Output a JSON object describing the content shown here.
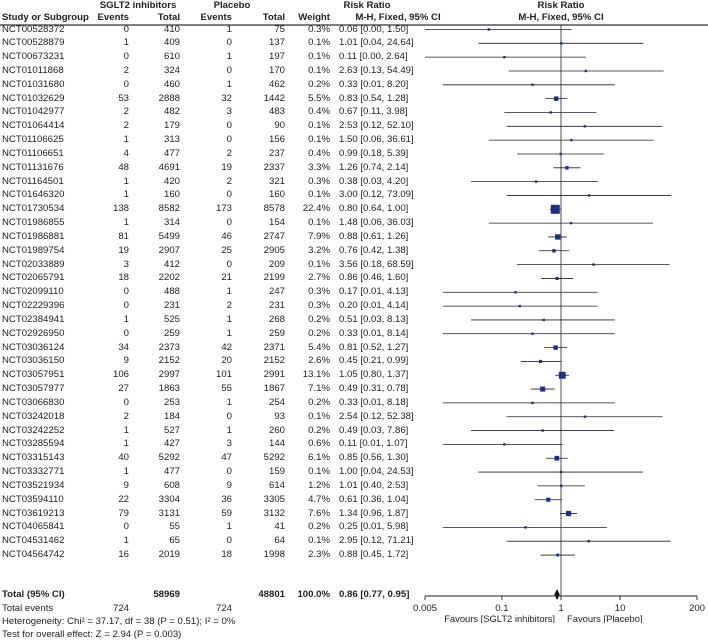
{
  "headers": {
    "group1": "SGLT2 inhibitors",
    "group2": "Placebo",
    "rr_left": "Risk Ratio",
    "rr_right": "Risk Ratio",
    "study": "Study or Subgroup",
    "events1": "Events",
    "total1": "Total",
    "events2": "Events",
    "total2": "Total",
    "weight": "Weight",
    "method_left": "M-H, Fixed, 95% CI",
    "method_right": "M-H, Fixed, 95% CI"
  },
  "rows": [
    {
      "study": "NCT00528372",
      "e1": "0",
      "n1": "410",
      "e2": "1",
      "n2": "75",
      "weight": "0.3%",
      "ci": "0.06 [0.00, 1.50]"
    },
    {
      "study": "NCT00528879",
      "e1": "1",
      "n1": "409",
      "e2": "0",
      "n2": "137",
      "weight": "0.1%",
      "ci": "1.01 [0.04, 24.64]"
    },
    {
      "study": "NCT00673231",
      "e1": "0",
      "n1": "610",
      "e2": "1",
      "n2": "197",
      "weight": "0.1%",
      "ci": "0.11 [0.00, 2.64]"
    },
    {
      "study": "NCT01011868",
      "e1": "2",
      "n1": "324",
      "e2": "0",
      "n2": "170",
      "weight": "0.1%",
      "ci": "2.63 [0.13, 54.49]"
    },
    {
      "study": "NCT01031680",
      "e1": "0",
      "n1": "460",
      "e2": "1",
      "n2": "462",
      "weight": "0.2%",
      "ci": "0.33 [0.01, 8.20]"
    },
    {
      "study": "NCT01032629",
      "e1": "53",
      "n1": "2888",
      "e2": "32",
      "n2": "1442",
      "weight": "5.5%",
      "ci": "0.83 [0.54, 1.28]"
    },
    {
      "study": "NCT01042977",
      "e1": "2",
      "n1": "482",
      "e2": "3",
      "n2": "483",
      "weight": "0.4%",
      "ci": "0.67 [0.11, 3.98]"
    },
    {
      "study": "NCT01064414",
      "e1": "2",
      "n1": "179",
      "e2": "0",
      "n2": "90",
      "weight": "0.1%",
      "ci": "2.53 [0.12, 52.10]"
    },
    {
      "study": "NCT01106625",
      "e1": "1",
      "n1": "313",
      "e2": "0",
      "n2": "156",
      "weight": "0.1%",
      "ci": "1.50 [0.06, 36.61]"
    },
    {
      "study": "NCT01106651",
      "e1": "4",
      "n1": "477",
      "e2": "2",
      "n2": "237",
      "weight": "0.4%",
      "ci": "0.99 [0.18, 5.39]"
    },
    {
      "study": "NCT01131676",
      "e1": "48",
      "n1": "4691",
      "e2": "19",
      "n2": "2337",
      "weight": "3.3%",
      "ci": "1.26 [0.74, 2.14]"
    },
    {
      "study": "NCT01164501",
      "e1": "1",
      "n1": "420",
      "e2": "2",
      "n2": "321",
      "weight": "0.3%",
      "ci": "0.38 [0.03, 4.20]"
    },
    {
      "study": "NCT01646320",
      "e1": "1",
      "n1": "160",
      "e2": "0",
      "n2": "160",
      "weight": "0.1%",
      "ci": "3.00 [0.12, 73.09]"
    },
    {
      "study": "NCT01730534",
      "e1": "138",
      "n1": "8582",
      "e2": "173",
      "n2": "8578",
      "weight": "22.4%",
      "ci": "0.80 [0.64, 1.00]"
    },
    {
      "study": "NCT01986855",
      "e1": "1",
      "n1": "314",
      "e2": "0",
      "n2": "154",
      "weight": "0.1%",
      "ci": "1.48 [0.06, 36.03]"
    },
    {
      "study": "NCT01986881",
      "e1": "81",
      "n1": "5499",
      "e2": "46",
      "n2": "2747",
      "weight": "7.9%",
      "ci": "0.88 [0.61, 1.26]"
    },
    {
      "study": "NCT01989754",
      "e1": "19",
      "n1": "2907",
      "e2": "25",
      "n2": "2905",
      "weight": "3.2%",
      "ci": "0.76 [0.42, 1.38]"
    },
    {
      "study": "NCT02033889",
      "e1": "3",
      "n1": "412",
      "e2": "0",
      "n2": "209",
      "weight": "0.1%",
      "ci": "3.56 [0.18, 68.59]"
    },
    {
      "study": "NCT02065791",
      "e1": "18",
      "n1": "2202",
      "e2": "21",
      "n2": "2199",
      "weight": "2.7%",
      "ci": "0.86 [0.46, 1.60]"
    },
    {
      "study": "NCT02099110",
      "e1": "0",
      "n1": "488",
      "e2": "1",
      "n2": "247",
      "weight": "0.3%",
      "ci": "0.17 [0.01, 4.13]"
    },
    {
      "study": "NCT02229396",
      "e1": "0",
      "n1": "231",
      "e2": "2",
      "n2": "231",
      "weight": "0.3%",
      "ci": "0.20 [0.01, 4.14]"
    },
    {
      "study": "NCT02384941",
      "e1": "1",
      "n1": "525",
      "e2": "1",
      "n2": "268",
      "weight": "0.2%",
      "ci": "0.51 [0.03, 8.13]"
    },
    {
      "study": "NCT02926950",
      "e1": "0",
      "n1": "259",
      "e2": "1",
      "n2": "259",
      "weight": "0.2%",
      "ci": "0.33 [0.01, 8.14]"
    },
    {
      "study": "NCT03036124",
      "e1": "34",
      "n1": "2373",
      "e2": "42",
      "n2": "2371",
      "weight": "5.4%",
      "ci": "0.81 [0.52, 1.27]"
    },
    {
      "study": "NCT03036150",
      "e1": "9",
      "n1": "2152",
      "e2": "20",
      "n2": "2152",
      "weight": "2.6%",
      "ci": "0.45 [0.21, 0.99]"
    },
    {
      "study": "NCT03057951",
      "e1": "106",
      "n1": "2997",
      "e2": "101",
      "n2": "2991",
      "weight": "13.1%",
      "ci": "1.05 [0.80, 1.37]"
    },
    {
      "study": "NCT03057977",
      "e1": "27",
      "n1": "1863",
      "e2": "55",
      "n2": "1867",
      "weight": "7.1%",
      "ci": "0.49 [0.31, 0.78]"
    },
    {
      "study": "NCT03066830",
      "e1": "0",
      "n1": "253",
      "e2": "1",
      "n2": "254",
      "weight": "0.2%",
      "ci": "0.33 [0.01, 8.18]"
    },
    {
      "study": "NCT03242018",
      "e1": "2",
      "n1": "184",
      "e2": "0",
      "n2": "93",
      "weight": "0.1%",
      "ci": "2.54 [0.12, 52.38]"
    },
    {
      "study": "NCT03242252",
      "e1": "1",
      "n1": "527",
      "e1b": "",
      "e2": "1",
      "n2": "260",
      "weight": "0.2%",
      "ci": "0.49 [0.03, 7.86]"
    },
    {
      "study": "NCT03285594",
      "e1": "1",
      "n1": "427",
      "e2": "3",
      "n2": "144",
      "weight": "0.6%",
      "ci": "0.11 [0.01, 1.07]"
    },
    {
      "study": "NCT03315143",
      "e1": "40",
      "n1": "5292",
      "e2": "47",
      "n2": "5292",
      "weight": "6.1%",
      "ci": "0.85 [0.56, 1.30]"
    },
    {
      "study": "NCT03332771",
      "e1": "1",
      "n1": "477",
      "e2": "0",
      "n2": "159",
      "weight": "0.1%",
      "ci": "1.00 [0.04, 24.53]"
    },
    {
      "study": "NCT03521934",
      "e1": "9",
      "n1": "608",
      "e2": "9",
      "n2": "614",
      "weight": "1.2%",
      "ci": "1.01 [0.40, 2.53]"
    },
    {
      "study": "NCT03594110",
      "e1": "22",
      "n1": "3304",
      "e2": "36",
      "n2": "3305",
      "weight": "4.7%",
      "ci": "0.61 [0.36, 1.04]"
    },
    {
      "study": "NCT03619213",
      "e1": "79",
      "n1": "3131",
      "e2": "59",
      "n2": "3132",
      "weight": "7.6%",
      "ci": "1.34 [0.96, 1.87]"
    },
    {
      "study": "NCT04065841",
      "e1": "0",
      "n1": "55",
      "e2": "1",
      "n2": "41",
      "weight": "0.2%",
      "ci": "0.25 [0.01, 5.98]"
    },
    {
      "study": "NCT04531462",
      "e1": "1",
      "n1": "65",
      "e2": "0",
      "n2": "64",
      "weight": "0.1%",
      "ci": "2.95 [0.12, 71.21]"
    },
    {
      "study": "NCT04564742",
      "e1": "16",
      "n1": "2019",
      "e2": "18",
      "n2": "1998",
      "weight": "2.3%",
      "ci": "0.88 [0.45, 1.72]"
    }
  ],
  "total": {
    "label": "Total (95% CI)",
    "n1": "58969",
    "n2": "48801",
    "weight": "100.0%",
    "ci": "0.86 [0.77, 0.95]"
  },
  "total_events": {
    "label": "Total events",
    "e1": "724",
    "e2": "724"
  },
  "heterogeneity": "Heterogeneity: Chi² = 37.17, df = 38 (P = 0.51); I² = 0%",
  "overall_effect": "Test for overall effect: Z = 2.94 (P = 0.003)",
  "chart_data": {
    "type": "forest",
    "scale": "log",
    "xlim": [
      0.005,
      200
    ],
    "ticks": [
      0.005,
      0.1,
      1,
      10,
      200
    ],
    "tick_labels": [
      "0.005",
      "0.1",
      "1",
      "10",
      "200"
    ],
    "xlabel_left": "Favours [SGLT2 inhibitors]",
    "xlabel_right": "Favours [Placebo]",
    "studies": [
      {
        "rr": 0.06,
        "lo": 0.001,
        "hi": 1.5,
        "w": 0.3
      },
      {
        "rr": 1.01,
        "lo": 0.04,
        "hi": 24.64,
        "w": 0.1
      },
      {
        "rr": 0.11,
        "lo": 0.001,
        "hi": 2.64,
        "w": 0.1
      },
      {
        "rr": 2.63,
        "lo": 0.13,
        "hi": 54.49,
        "w": 0.1
      },
      {
        "rr": 0.33,
        "lo": 0.01,
        "hi": 8.2,
        "w": 0.2
      },
      {
        "rr": 0.83,
        "lo": 0.54,
        "hi": 1.28,
        "w": 5.5
      },
      {
        "rr": 0.67,
        "lo": 0.11,
        "hi": 3.98,
        "w": 0.4
      },
      {
        "rr": 2.53,
        "lo": 0.12,
        "hi": 52.1,
        "w": 0.1
      },
      {
        "rr": 1.5,
        "lo": 0.06,
        "hi": 36.61,
        "w": 0.1
      },
      {
        "rr": 0.99,
        "lo": 0.18,
        "hi": 5.39,
        "w": 0.4
      },
      {
        "rr": 1.26,
        "lo": 0.74,
        "hi": 2.14,
        "w": 3.3
      },
      {
        "rr": 0.38,
        "lo": 0.03,
        "hi": 4.2,
        "w": 0.3
      },
      {
        "rr": 3.0,
        "lo": 0.12,
        "hi": 73.09,
        "w": 0.1
      },
      {
        "rr": 0.8,
        "lo": 0.64,
        "hi": 1.0,
        "w": 22.4
      },
      {
        "rr": 1.48,
        "lo": 0.06,
        "hi": 36.03,
        "w": 0.1
      },
      {
        "rr": 0.88,
        "lo": 0.61,
        "hi": 1.26,
        "w": 7.9
      },
      {
        "rr": 0.76,
        "lo": 0.42,
        "hi": 1.38,
        "w": 3.2
      },
      {
        "rr": 3.56,
        "lo": 0.18,
        "hi": 68.59,
        "w": 0.1
      },
      {
        "rr": 0.86,
        "lo": 0.46,
        "hi": 1.6,
        "w": 2.7
      },
      {
        "rr": 0.17,
        "lo": 0.01,
        "hi": 4.13,
        "w": 0.3
      },
      {
        "rr": 0.2,
        "lo": 0.01,
        "hi": 4.14,
        "w": 0.3
      },
      {
        "rr": 0.51,
        "lo": 0.03,
        "hi": 8.13,
        "w": 0.2
      },
      {
        "rr": 0.33,
        "lo": 0.01,
        "hi": 8.14,
        "w": 0.2
      },
      {
        "rr": 0.81,
        "lo": 0.52,
        "hi": 1.27,
        "w": 5.4
      },
      {
        "rr": 0.45,
        "lo": 0.21,
        "hi": 0.99,
        "w": 2.6
      },
      {
        "rr": 1.05,
        "lo": 0.8,
        "hi": 1.37,
        "w": 13.1
      },
      {
        "rr": 0.49,
        "lo": 0.31,
        "hi": 0.78,
        "w": 7.1
      },
      {
        "rr": 0.33,
        "lo": 0.01,
        "hi": 8.18,
        "w": 0.2
      },
      {
        "rr": 2.54,
        "lo": 0.12,
        "hi": 52.38,
        "w": 0.1
      },
      {
        "rr": 0.49,
        "lo": 0.03,
        "hi": 7.86,
        "w": 0.2
      },
      {
        "rr": 0.11,
        "lo": 0.01,
        "hi": 1.07,
        "w": 0.6
      },
      {
        "rr": 0.85,
        "lo": 0.56,
        "hi": 1.3,
        "w": 6.1
      },
      {
        "rr": 1.0,
        "lo": 0.04,
        "hi": 24.53,
        "w": 0.1
      },
      {
        "rr": 1.01,
        "lo": 0.4,
        "hi": 2.53,
        "w": 1.2
      },
      {
        "rr": 0.61,
        "lo": 0.36,
        "hi": 1.04,
        "w": 4.7
      },
      {
        "rr": 1.34,
        "lo": 0.96,
        "hi": 1.87,
        "w": 7.6
      },
      {
        "rr": 0.25,
        "lo": 0.01,
        "hi": 5.98,
        "w": 0.2
      },
      {
        "rr": 2.95,
        "lo": 0.12,
        "hi": 71.21,
        "w": 0.1
      },
      {
        "rr": 0.88,
        "lo": 0.45,
        "hi": 1.72,
        "w": 2.3
      }
    ],
    "pooled": {
      "rr": 0.86,
      "lo": 0.77,
      "hi": 0.95
    }
  },
  "colors": {
    "marker": "#1f2d8a",
    "line": "#222222",
    "divider": "#333333"
  }
}
